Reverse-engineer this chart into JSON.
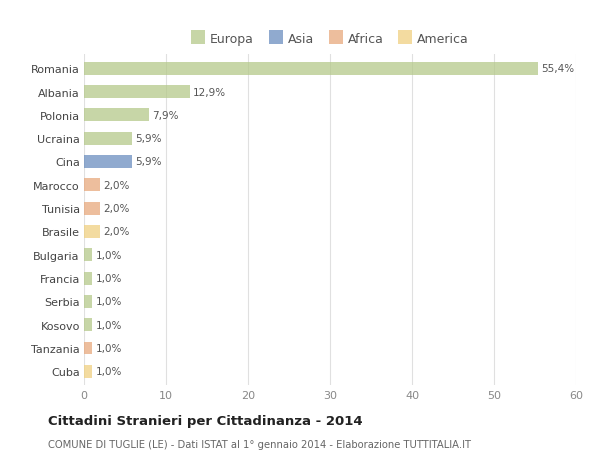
{
  "categories": [
    "Romania",
    "Albania",
    "Polonia",
    "Ucraina",
    "Cina",
    "Marocco",
    "Tunisia",
    "Brasile",
    "Bulgaria",
    "Francia",
    "Serbia",
    "Kosovo",
    "Tanzania",
    "Cuba"
  ],
  "values": [
    55.4,
    12.9,
    7.9,
    5.9,
    5.9,
    2.0,
    2.0,
    2.0,
    1.0,
    1.0,
    1.0,
    1.0,
    1.0,
    1.0
  ],
  "labels": [
    "55,4%",
    "12,9%",
    "7,9%",
    "5,9%",
    "5,9%",
    "2,0%",
    "2,0%",
    "2,0%",
    "1,0%",
    "1,0%",
    "1,0%",
    "1,0%",
    "1,0%",
    "1,0%"
  ],
  "bar_colors": [
    "#b5c98a",
    "#b5c98a",
    "#b5c98a",
    "#b5c98a",
    "#6b8ebf",
    "#e8a87c",
    "#e8a87c",
    "#f0d080",
    "#b5c98a",
    "#b5c98a",
    "#b5c98a",
    "#b5c98a",
    "#e8a87c",
    "#f0d080"
  ],
  "legend_labels": [
    "Europa",
    "Asia",
    "Africa",
    "America"
  ],
  "legend_colors": [
    "#b5c98a",
    "#6b8ebf",
    "#e8a87c",
    "#f0d080"
  ],
  "title": "Cittadini Stranieri per Cittadinanza - 2014",
  "subtitle": "COMUNE DI TUGLIE (LE) - Dati ISTAT al 1° gennaio 2014 - Elaborazione TUTTITALIA.IT",
  "xlim": [
    0,
    60
  ],
  "xticks": [
    0,
    10,
    20,
    30,
    40,
    50,
    60
  ],
  "background_color": "#ffffff",
  "grid_color": "#e0e0e0",
  "bar_alpha": 0.75,
  "bar_height": 0.55
}
